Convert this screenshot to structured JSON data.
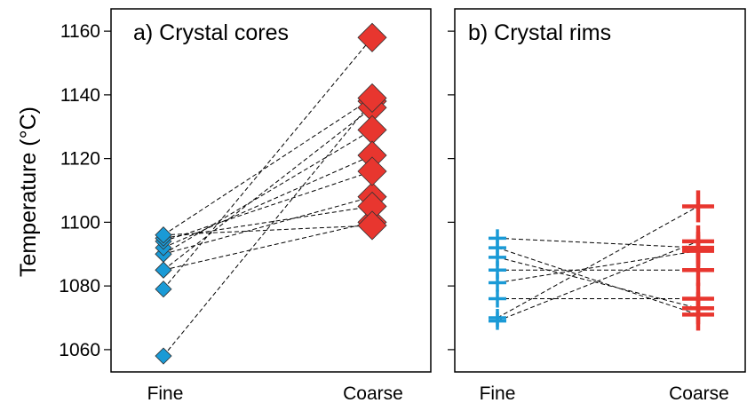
{
  "chart_data": [
    {
      "type": "scatter",
      "title": "a) Crystal cores",
      "ylabel": "Temperature (°C)",
      "categories": [
        "Fine",
        "Coarse"
      ],
      "ylim": [
        1053,
        1167
      ],
      "yticks": [
        1060,
        1080,
        1100,
        1120,
        1140,
        1160
      ],
      "marker": "diamond",
      "colors": {
        "Fine": "#1a9ad6",
        "Coarse": "#e8362f"
      },
      "pairs": [
        {
          "fine": 1058,
          "coarse": 1138
        },
        {
          "fine": 1079,
          "coarse": 1158
        },
        {
          "fine": 1085,
          "coarse": 1100
        },
        {
          "fine": 1085,
          "coarse": 1136
        },
        {
          "fine": 1090,
          "coarse": 1108
        },
        {
          "fine": 1090,
          "coarse": 1129
        },
        {
          "fine": 1092,
          "coarse": 1121
        },
        {
          "fine": 1094,
          "coarse": 1116
        },
        {
          "fine": 1095,
          "coarse": 1105
        },
        {
          "fine": 1096,
          "coarse": 1139
        },
        {
          "fine": 1096,
          "coarse": 1099
        }
      ]
    },
    {
      "type": "scatter",
      "title": "b) Crystal rims",
      "categories": [
        "Fine",
        "Coarse"
      ],
      "ylim": [
        1053,
        1167
      ],
      "marker": "cross",
      "colors": {
        "Fine": "#1a9ad6",
        "Coarse": "#e8362f"
      },
      "pairs": [
        {
          "fine": 1069,
          "coarse": 1094
        },
        {
          "fine": 1070,
          "coarse": 1105
        },
        {
          "fine": 1076,
          "coarse": 1076
        },
        {
          "fine": 1081,
          "coarse": 1091
        },
        {
          "fine": 1085,
          "coarse": 1085
        },
        {
          "fine": 1089,
          "coarse": 1073
        },
        {
          "fine": 1092,
          "coarse": 1071
        },
        {
          "fine": 1095,
          "coarse": 1092
        }
      ]
    }
  ]
}
